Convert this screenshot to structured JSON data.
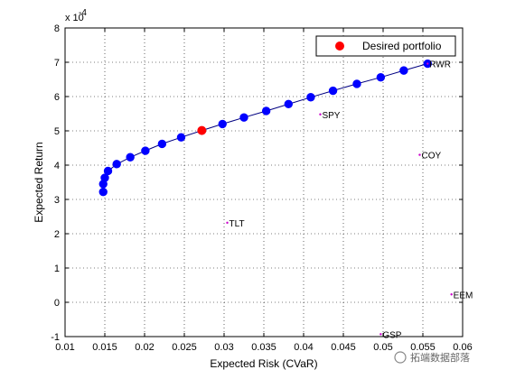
{
  "chart_data": {
    "type": "scatter",
    "xlabel": "Expected Risk (CVaR)",
    "ylabel": "Expected Return",
    "y_exponent_label": "x 10",
    "y_exponent_power": "-4",
    "xlim": [
      0.01,
      0.06
    ],
    "ylim": [
      -1,
      8
    ],
    "x_ticks": [
      0.01,
      0.015,
      0.02,
      0.025,
      0.03,
      0.035,
      0.04,
      0.045,
      0.05,
      0.055,
      0.06
    ],
    "x_tick_labels": [
      "0.01",
      "0.015",
      "0.02",
      "0.025",
      "0.03",
      "0.035",
      "0.04",
      "0.045",
      "0.05",
      "0.055",
      "0.06"
    ],
    "y_ticks": [
      -1,
      0,
      1,
      2,
      3,
      4,
      5,
      6,
      7,
      8
    ],
    "y_tick_labels": [
      "-1",
      "0",
      "1",
      "2",
      "3",
      "4",
      "5",
      "6",
      "7",
      "8"
    ],
    "grid": true,
    "legend_position": "top-right",
    "series": [
      {
        "role": "efficient-frontier",
        "color": "#0000ff",
        "line_color": "#000080",
        "points": [
          {
            "x": 0.0148,
            "y": 3.22
          },
          {
            "x": 0.0148,
            "y": 3.45
          },
          {
            "x": 0.015,
            "y": 3.63
          },
          {
            "x": 0.0154,
            "y": 3.83
          },
          {
            "x": 0.0165,
            "y": 4.03
          },
          {
            "x": 0.0182,
            "y": 4.23
          },
          {
            "x": 0.0201,
            "y": 4.42
          },
          {
            "x": 0.0222,
            "y": 4.62
          },
          {
            "x": 0.0246,
            "y": 4.81
          },
          {
            "x": 0.0272,
            "y": 5.01
          },
          {
            "x": 0.0298,
            "y": 5.2
          },
          {
            "x": 0.0325,
            "y": 5.39
          },
          {
            "x": 0.0353,
            "y": 5.58
          },
          {
            "x": 0.0381,
            "y": 5.78
          },
          {
            "x": 0.0409,
            "y": 5.98
          },
          {
            "x": 0.0437,
            "y": 6.17
          },
          {
            "x": 0.0467,
            "y": 6.37
          },
          {
            "x": 0.0497,
            "y": 6.56
          },
          {
            "x": 0.0526,
            "y": 6.76
          },
          {
            "x": 0.0556,
            "y": 6.96
          }
        ]
      },
      {
        "role": "assets",
        "color": "#cc00cc",
        "points": [
          {
            "label": "RWR",
            "x": 0.0556,
            "y": 6.96
          },
          {
            "label": "SPY",
            "x": 0.0421,
            "y": 5.48
          },
          {
            "label": "COY",
            "x": 0.0546,
            "y": 4.3
          },
          {
            "label": "TLT",
            "x": 0.0304,
            "y": 2.32
          },
          {
            "label": "EEM",
            "x": 0.0586,
            "y": 0.23
          },
          {
            "label": "GSP",
            "x": 0.0497,
            "y": -0.93
          }
        ]
      },
      {
        "name": "Desired portfolio",
        "role": "desired",
        "color": "#ff0000",
        "points": [
          {
            "x": 0.0272,
            "y": 5.01
          }
        ]
      }
    ]
  },
  "legend": {
    "label": "Desired portfolio"
  },
  "watermark": {
    "text": "拓端数据部落"
  }
}
